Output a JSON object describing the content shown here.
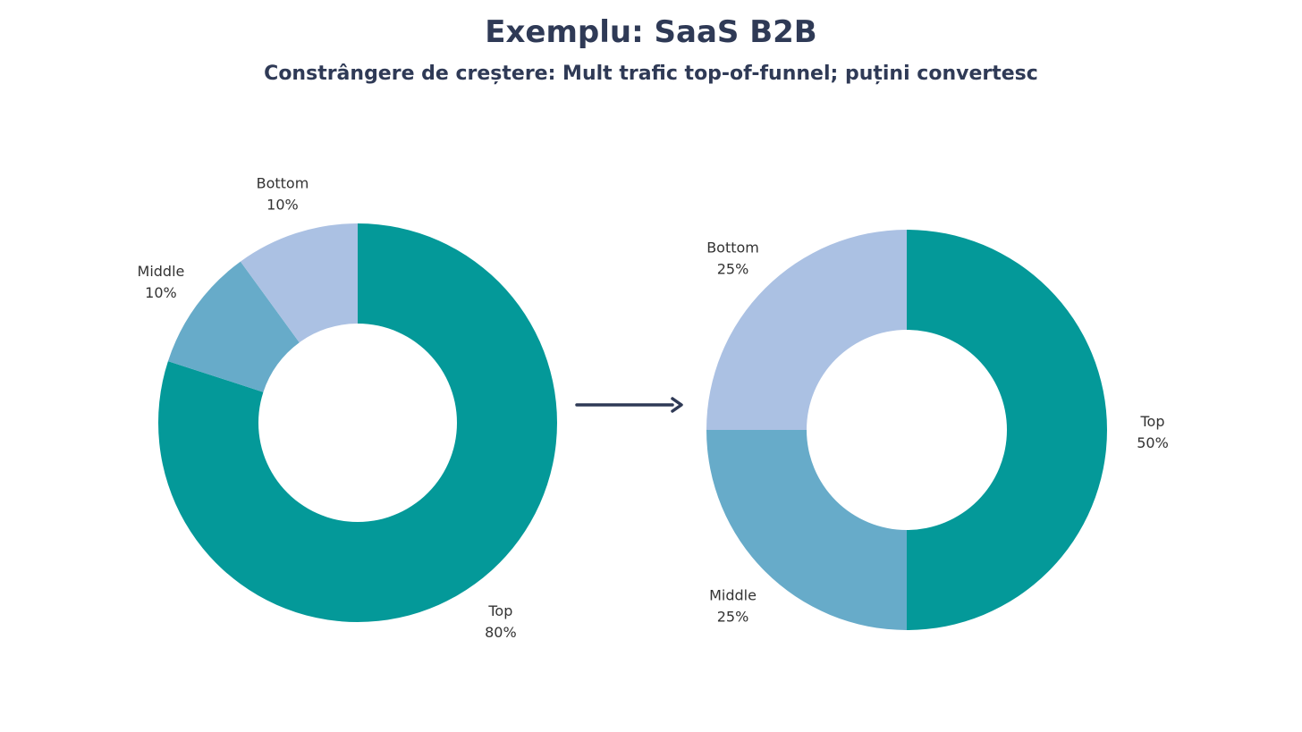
{
  "title": "Exemplu: SaaS B2B",
  "subtitle": "Constrângere de creștere: Mult trafic top-of-funnel; puțini convertesc",
  "colors": {
    "top": "#049999",
    "middle": "#67abc9",
    "bottom": "#abc1e3",
    "arrow": "#2f3a56",
    "text": "#333333"
  },
  "chart_data": [
    {
      "type": "donut",
      "categories": [
        "Top",
        "Middle",
        "Bottom"
      ],
      "values": [
        80,
        10,
        10
      ],
      "labels": [
        "80%",
        "10%",
        "10%"
      ]
    },
    {
      "type": "donut",
      "categories": [
        "Top",
        "Middle",
        "Bottom"
      ],
      "values": [
        50,
        25,
        25
      ],
      "labels": [
        "50%",
        "25%",
        "25%"
      ]
    }
  ]
}
